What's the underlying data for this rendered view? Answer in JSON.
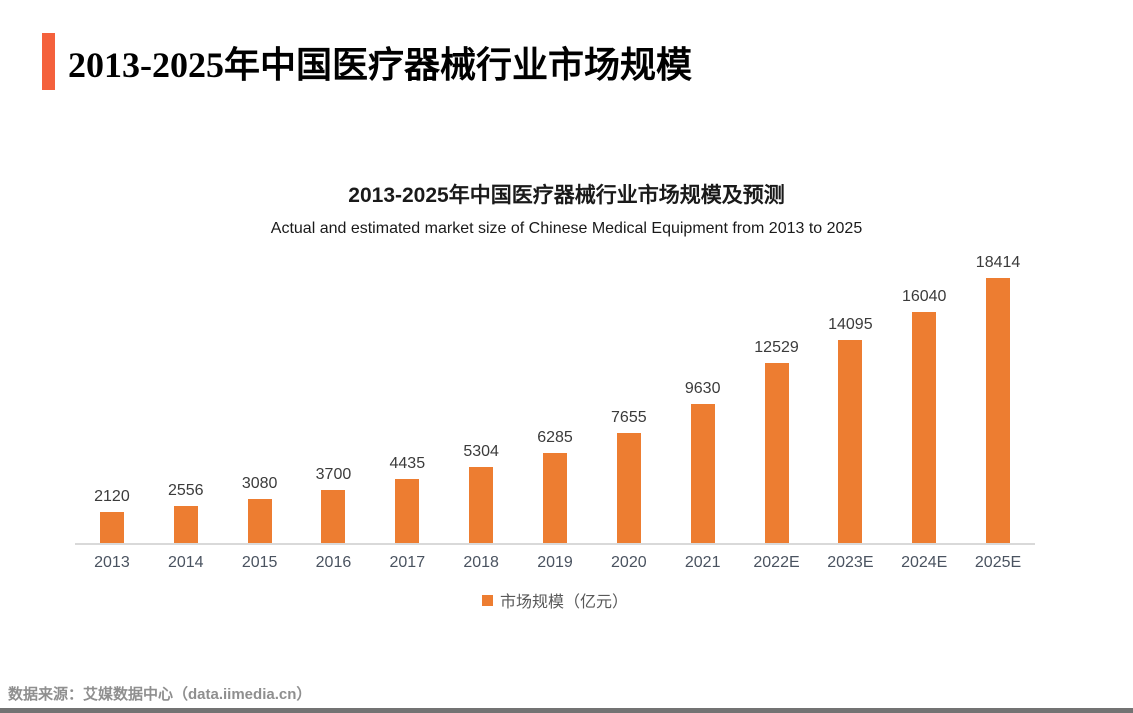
{
  "page": {
    "header": {
      "title": "2013-2025年中国医疗器械行业市场规模",
      "accent_color": "#F4613C"
    },
    "footer": {
      "source": "数据来源：艾媒数据中心（data.iimedia.cn）",
      "bottom_bar_color": "#737373"
    }
  },
  "chart_data": {
    "type": "bar",
    "title": "2013-2025年中国医疗器械行业市场规模及预测",
    "subtitle": "Actual and estimated market size of Chinese Medical Equipment from 2013 to 2025",
    "categories": [
      "2013",
      "2014",
      "2015",
      "2016",
      "2017",
      "2018",
      "2019",
      "2020",
      "2021",
      "2022E",
      "2023E",
      "2024E",
      "2025E"
    ],
    "values": [
      2120,
      2556,
      3080,
      3700,
      4435,
      5304,
      6285,
      7655,
      9630,
      12529,
      14095,
      16040,
      18414
    ],
    "series": [
      {
        "name": "市场规模（亿元）",
        "values": [
          2120,
          2556,
          3080,
          3700,
          4435,
          5304,
          6285,
          7655,
          9630,
          12529,
          14095,
          16040,
          18414
        ]
      }
    ],
    "legend_label": "市场规模（亿元）",
    "legend_position": "bottom",
    "data_labels": true,
    "grid": false,
    "xlabel": "",
    "ylabel": "",
    "ylim": [
      0,
      18414
    ],
    "bar_color": "#ED7D31",
    "axis_line_color": "#D9D9D9"
  }
}
